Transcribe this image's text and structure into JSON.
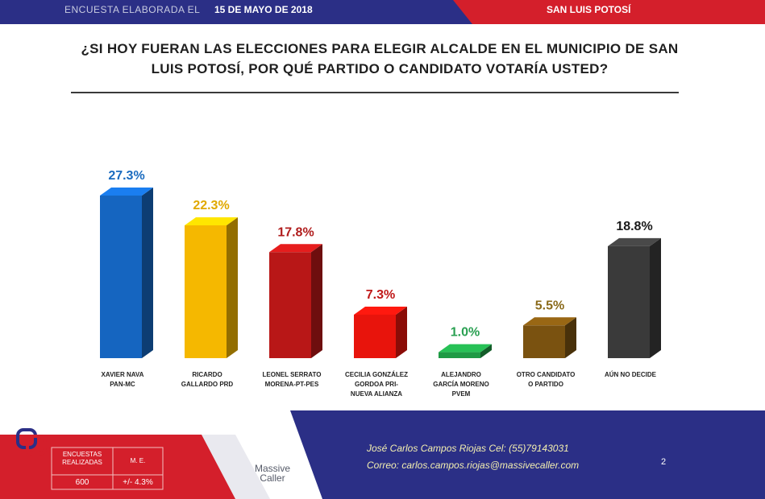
{
  "header": {
    "survey_label": "ENCUESTA ELABORADA EL",
    "survey_date": "15 DE MAYO DE 2018",
    "region": "SAN LUIS POTOSÍ"
  },
  "question_line1": "¿SI HOY FUERAN LAS ELECCIONES PARA ELEGIR ALCALDE EN EL MUNICIPIO DE SAN",
  "question_line2": "LUIS POTOSÍ, POR QUÉ PARTIDO O CANDIDATO VOTARÍA USTED?",
  "chart_data": {
    "type": "bar",
    "title": "¿SI HOY FUERAN LAS ELECCIONES PARA ELEGIR ALCALDE EN EL MUNICIPIO DE SAN LUIS POTOSÍ, POR QUÉ PARTIDO O CANDIDATO VOTARÍA USTED?",
    "categories": [
      [
        "XAVIER NAVA",
        "PAN-MC"
      ],
      [
        "RICARDO",
        "GALLARDO PRD"
      ],
      [
        "LEONEL SERRATO",
        "MORENA-PT-PES"
      ],
      [
        "CECILIA GONZÁLEZ",
        "GORDOA PRI-",
        "NUEVA ALIANZA"
      ],
      [
        "ALEJANDRO",
        "GARCÍA MORENO",
        "PVEM"
      ],
      [
        "OTRO CANDIDATO",
        "O PARTIDO"
      ],
      [
        "AÚN NO DECIDE"
      ]
    ],
    "values": [
      27.3,
      22.3,
      17.8,
      7.3,
      1.0,
      5.5,
      18.8
    ],
    "value_labels": [
      "27.3%",
      "22.3%",
      "17.8%",
      "7.3%",
      "1.0%",
      "5.5%",
      "18.8%"
    ],
    "colors": [
      "#1565c0",
      "#f5b800",
      "#b81717",
      "#e8140c",
      "#1f9a45",
      "#7a5210",
      "#3a3a3a"
    ],
    "label_colors": [
      "#1a6bbf",
      "#e0a800",
      "#b01c1c",
      "#c01818",
      "#2aa052",
      "#8a6a1a",
      "#1a1a1a"
    ],
    "style": "3d",
    "grid": false,
    "legend": "none"
  },
  "footer": {
    "stats_header_1": "ENCUESTAS REALIZADAS",
    "stats_header_2": "M. E.",
    "stats_value_1": "600",
    "stats_value_2": "+/- 4.3%",
    "logo_line1": "Massive",
    "logo_line2": "Caller",
    "contact_line1": "José Carlos Campos Riojas Cel: (55)79143031",
    "contact_line2": "Correo: carlos.campos.riojas@massivecaller.com",
    "page_number": "2"
  }
}
